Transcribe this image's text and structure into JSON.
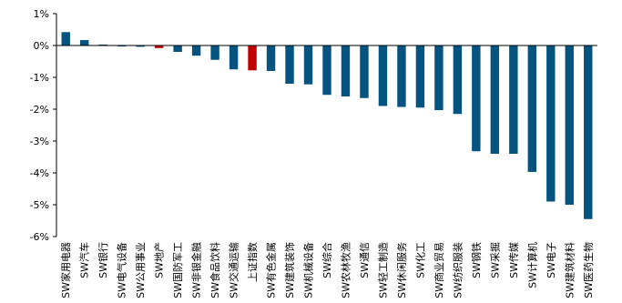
{
  "chart_data": {
    "type": "bar",
    "title": "",
    "xlabel": "",
    "ylabel": "",
    "ylim": [
      -6,
      1
    ],
    "yticks": [
      1,
      0,
      -1,
      -2,
      -3,
      -4,
      -5,
      -6
    ],
    "ytick_format": "%",
    "grid": false,
    "legend": "none",
    "colors": {
      "default": "#04547F",
      "highlight": "#C00000"
    },
    "categories": [
      "SW家用电器",
      "SW汽车",
      "SW银行",
      "SW电气设备",
      "SW公用事业",
      "SW地产",
      "SW国防军工",
      "SW非银金融",
      "SW食品饮料",
      "SW交通运输",
      "上证指数",
      "SW有色金属",
      "SW建筑装饰",
      "SW机械设备",
      "SW综合",
      "SW农林牧渔",
      "SW通信",
      "SW轻工制造",
      "SW休闲服务",
      "SW化工",
      "SW商业贸易",
      "SW纺织服装",
      "SW钢铁",
      "SW采掘",
      "SW传媒",
      "SW计算机",
      "SW电子",
      "SW建筑材料",
      "SW医药生物"
    ],
    "values": [
      0.42,
      0.17,
      0.03,
      -0.03,
      -0.04,
      -0.08,
      -0.2,
      -0.32,
      -0.45,
      -0.75,
      -0.78,
      -0.8,
      -1.2,
      -1.22,
      -1.55,
      -1.6,
      -1.65,
      -1.9,
      -1.93,
      -1.95,
      -2.03,
      -2.15,
      -3.32,
      -3.4,
      -3.4,
      -3.97,
      -4.9,
      -5.0,
      -5.45
    ],
    "highlight": [
      "SW地产",
      "上证指数"
    ]
  }
}
